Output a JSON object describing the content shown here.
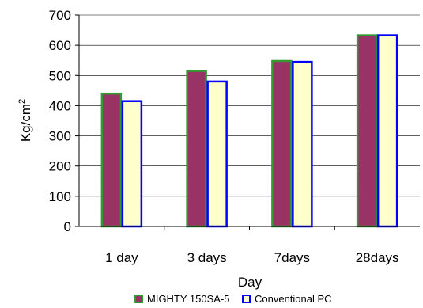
{
  "chart_data": {
    "type": "bar",
    "categories": [
      "1 day",
      "3 days",
      "7days",
      "28days"
    ],
    "series": [
      {
        "name": "MIGHTY 150SA-5",
        "values": [
          440,
          515,
          548,
          633
        ],
        "fill": "#993366",
        "stroke": "#339933"
      },
      {
        "name": "Conventional PC",
        "values": [
          415,
          480,
          545,
          633
        ],
        "fill": "#FFFFCC",
        "stroke": "#0000FF"
      }
    ],
    "xlabel": "Day",
    "ylabel": "Kg/cm",
    "ylabel_superscript": "2",
    "ylim": [
      0,
      700
    ],
    "yticks": [
      0,
      100,
      200,
      300,
      400,
      500,
      600,
      700
    ],
    "grid": true,
    "legend": "bottom"
  }
}
